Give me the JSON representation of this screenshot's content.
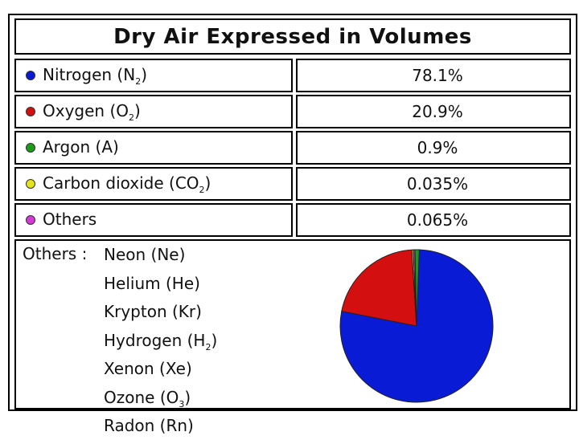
{
  "title": "Dry Air Expressed in Volumes",
  "rows": [
    {
      "label": "Nitrogen (N",
      "sub": "2",
      "label_end": ")",
      "value": "78.1%",
      "color": "#0a1bd6"
    },
    {
      "label": "Oxygen (O",
      "sub": "2",
      "label_end": ")",
      "value": "20.9%",
      "color": "#d40f0f"
    },
    {
      "label": "Argon (A)",
      "sub": "",
      "label_end": "",
      "value": "0.9%",
      "color": "#1b9a1b"
    },
    {
      "label": "Carbon dioxide (CO",
      "sub": "2",
      "label_end": ")",
      "value": "0.035%",
      "color": "#e4e41c"
    },
    {
      "label": "Others",
      "sub": "",
      "label_end": "",
      "value": "0.065%",
      "color": "#d43ad4"
    }
  ],
  "others": {
    "heading": "Others : ",
    "items": [
      {
        "label": "Neon (Ne)",
        "sub": "",
        "label_end": ""
      },
      {
        "label": "Helium (He)",
        "sub": "",
        "label_end": ""
      },
      {
        "label": "Krypton (Kr)",
        "sub": "",
        "label_end": ""
      },
      {
        "label": "Hydrogen (H",
        "sub": "2",
        "label_end": ")"
      },
      {
        "label": "Xenon (Xe)",
        "sub": "",
        "label_end": ""
      },
      {
        "label": "Ozone (O",
        "sub": "3",
        "label_end": ")"
      },
      {
        "label": "Radon (Rn)",
        "sub": "",
        "label_end": ""
      }
    ]
  },
  "chart_data": {
    "type": "pie",
    "title": "",
    "categories": [
      "Nitrogen",
      "Oxygen",
      "Argon",
      "Carbon dioxide",
      "Others"
    ],
    "values": [
      78.1,
      20.9,
      0.9,
      0.035,
      0.065
    ],
    "colors": [
      "#0a1bd6",
      "#d40f0f",
      "#1b9a1b",
      "#e4e41c",
      "#d43ad4"
    ],
    "legend": "none"
  }
}
